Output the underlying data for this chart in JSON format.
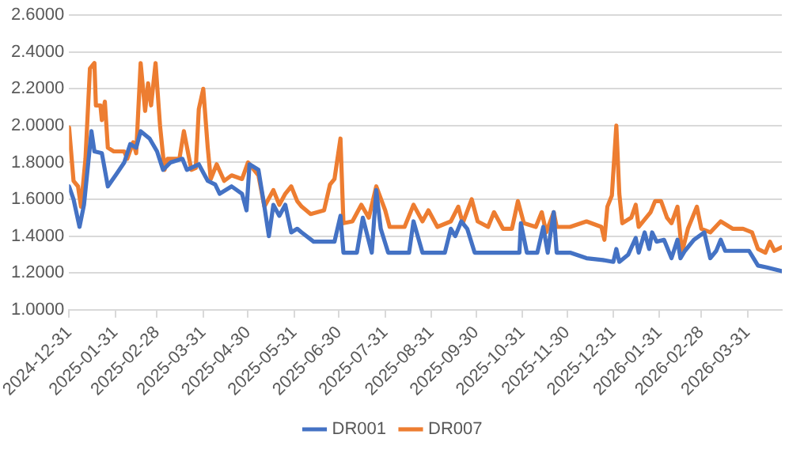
{
  "chart_data": {
    "type": "line",
    "xlim": [
      "2024-12-31",
      "2026-04-23"
    ],
    "xticks": [
      "2024-12-31",
      "2025-01-31",
      "2025-02-28",
      "2025-03-31",
      "2025-04-30",
      "2025-05-31",
      "2025-06-30",
      "2025-07-31",
      "2025-08-31",
      "2025-09-30",
      "2025-10-31",
      "2025-11-30",
      "2025-12-31",
      "2026-01-31",
      "2026-02-28",
      "2026-03-31"
    ],
    "ylim": [
      1,
      2.6
    ],
    "yticks": [
      {
        "value": 1,
        "label": "1.0000"
      },
      {
        "value": 1.2,
        "label": "1.2000"
      },
      {
        "value": 1.4,
        "label": "1.4000"
      },
      {
        "value": 1.6,
        "label": "1.6000"
      },
      {
        "value": 1.8,
        "label": "1.8000"
      },
      {
        "value": 2,
        "label": "2.0000"
      },
      {
        "value": 2.2,
        "label": "2.2000"
      },
      {
        "value": 2.4,
        "label": "2.4000"
      },
      {
        "value": 2.6,
        "label": "2.6000"
      }
    ],
    "grid": "y",
    "legend": "bottom",
    "marker": "none",
    "line_style": "solid",
    "series": [
      {
        "name": "DR001",
        "color": "#4472c4",
        "x": [
          "2024-12-31",
          "2025-01-03",
          "2025-01-07",
          "2025-01-10",
          "2025-01-15",
          "2025-01-17",
          "2025-01-22",
          "2025-01-26",
          "2025-02-01",
          "2025-02-06",
          "2025-02-10",
          "2025-02-14",
          "2025-02-17",
          "2025-02-23",
          "2025-02-28",
          "2025-03-04",
          "2025-03-09",
          "2025-03-17",
          "2025-03-20",
          "2025-03-28",
          "2025-04-03",
          "2025-04-08",
          "2025-04-11",
          "2025-04-19",
          "2025-04-26",
          "2025-04-29",
          "2025-05-01",
          "2025-05-07",
          "2025-05-11",
          "2025-05-14",
          "2025-05-17",
          "2025-05-21",
          "2025-05-25",
          "2025-05-29",
          "2025-06-02",
          "2025-06-05",
          "2025-06-13",
          "2025-06-27",
          "2025-07-01",
          "2025-07-03",
          "2025-07-12",
          "2025-07-16",
          "2025-07-22",
          "2025-07-25",
          "2025-07-28",
          "2025-08-02",
          "2025-08-16",
          "2025-08-19",
          "2025-08-25",
          "2025-09-09",
          "2025-09-13",
          "2025-09-16",
          "2025-09-20",
          "2025-09-24",
          "2025-09-29",
          "2025-10-10",
          "2025-10-16",
          "2025-10-29",
          "2025-10-30",
          "2025-11-03",
          "2025-11-10",
          "2025-11-14",
          "2025-11-17",
          "2025-11-21",
          "2025-11-23",
          "2025-12-02",
          "2025-12-13",
          "2025-12-24",
          "2025-12-31",
          "2026-01-02",
          "2026-01-04",
          "2026-01-10",
          "2026-01-15",
          "2026-01-17",
          "2026-01-21",
          "2026-01-24",
          "2026-01-26",
          "2026-01-29",
          "2026-02-03",
          "2026-02-08",
          "2026-02-12",
          "2026-02-14",
          "2026-02-17",
          "2026-02-23",
          "2026-03-02",
          "2026-03-06",
          "2026-03-10",
          "2026-03-13",
          "2026-03-16",
          "2026-04-01",
          "2026-04-07",
          "2026-04-13",
          "2026-04-23"
        ],
        "values": [
          1.67,
          1.6,
          1.45,
          1.57,
          1.97,
          1.86,
          1.85,
          1.67,
          1.74,
          1.8,
          1.9,
          1.88,
          1.97,
          1.93,
          1.86,
          1.76,
          1.8,
          1.82,
          1.76,
          1.79,
          1.7,
          1.68,
          1.63,
          1.67,
          1.63,
          1.54,
          1.79,
          1.76,
          1.56,
          1.4,
          1.57,
          1.51,
          1.57,
          1.42,
          1.44,
          1.42,
          1.37,
          1.37,
          1.51,
          1.31,
          1.31,
          1.5,
          1.31,
          1.65,
          1.44,
          1.31,
          1.31,
          1.48,
          1.31,
          1.31,
          1.44,
          1.4,
          1.48,
          1.44,
          1.31,
          1.31,
          1.31,
          1.31,
          1.47,
          1.31,
          1.31,
          1.45,
          1.31,
          1.53,
          1.31,
          1.31,
          1.28,
          1.27,
          1.26,
          1.33,
          1.26,
          1.3,
          1.39,
          1.31,
          1.42,
          1.33,
          1.42,
          1.37,
          1.38,
          1.28,
          1.38,
          1.28,
          1.32,
          1.38,
          1.42,
          1.28,
          1.32,
          1.38,
          1.32,
          1.32,
          1.24,
          1.23,
          1.21
        ]
      },
      {
        "name": "DR007",
        "color": "#ed7d31",
        "x": [
          "2024-12-31",
          "2025-01-03",
          "2025-01-06",
          "2025-01-08",
          "2025-01-11",
          "2025-01-14",
          "2025-01-17",
          "2025-01-18",
          "2025-01-21",
          "2025-01-22",
          "2025-01-24",
          "2025-01-26",
          "2025-01-30",
          "2025-02-06",
          "2025-02-08",
          "2025-02-12",
          "2025-02-14",
          "2025-02-17",
          "2025-02-20",
          "2025-02-22",
          "2025-02-24",
          "2025-02-27",
          "2025-03-02",
          "2025-03-05",
          "2025-03-07",
          "2025-03-15",
          "2025-03-18",
          "2025-03-23",
          "2025-03-26",
          "2025-03-28",
          "2025-03-31",
          "2025-04-03",
          "2025-04-05",
          "2025-04-09",
          "2025-04-14",
          "2025-04-19",
          "2025-04-26",
          "2025-04-30",
          "2025-05-07",
          "2025-05-11",
          "2025-05-17",
          "2025-05-21",
          "2025-05-25",
          "2025-05-29",
          "2025-06-02",
          "2025-06-05",
          "2025-06-11",
          "2025-06-20",
          "2025-06-24",
          "2025-06-27",
          "2025-07-01",
          "2025-07-03",
          "2025-07-09",
          "2025-07-15",
          "2025-07-20",
          "2025-07-25",
          "2025-07-31",
          "2025-08-03",
          "2025-08-13",
          "2025-08-19",
          "2025-08-25",
          "2025-08-29",
          "2025-09-04",
          "2025-09-13",
          "2025-09-18",
          "2025-09-21",
          "2025-09-27",
          "2025-10-01",
          "2025-10-08",
          "2025-10-12",
          "2025-10-18",
          "2025-10-24",
          "2025-10-28",
          "2025-11-01",
          "2025-11-09",
          "2025-11-13",
          "2025-11-16",
          "2025-11-21",
          "2025-11-23",
          "2025-12-02",
          "2025-12-13",
          "2025-12-23",
          "2025-12-25",
          "2025-12-27",
          "2025-12-30",
          "2026-01-02",
          "2026-01-04",
          "2026-01-06",
          "2026-01-12",
          "2026-01-15",
          "2026-01-17",
          "2026-01-25",
          "2026-01-28",
          "2026-02-01",
          "2026-02-05",
          "2026-02-08",
          "2026-02-12",
          "2026-02-15",
          "2026-02-19",
          "2026-02-25",
          "2026-02-28",
          "2026-03-06",
          "2026-03-13",
          "2026-03-21",
          "2026-03-28",
          "2026-04-03",
          "2026-04-07",
          "2026-04-12",
          "2026-04-15",
          "2026-04-18",
          "2026-04-23"
        ],
        "values": [
          1.99,
          1.7,
          1.67,
          1.56,
          1.82,
          2.31,
          2.34,
          2.11,
          2.11,
          2.03,
          2.13,
          1.88,
          1.86,
          1.86,
          1.82,
          1.91,
          1.85,
          2.34,
          2.08,
          2.23,
          2.11,
          2.34,
          2.0,
          1.76,
          1.82,
          1.82,
          1.97,
          1.76,
          1.77,
          2.09,
          2.2,
          1.88,
          1.71,
          1.79,
          1.7,
          1.73,
          1.71,
          1.8,
          1.73,
          1.56,
          1.65,
          1.57,
          1.63,
          1.67,
          1.59,
          1.56,
          1.52,
          1.54,
          1.68,
          1.71,
          1.93,
          1.47,
          1.48,
          1.57,
          1.5,
          1.67,
          1.54,
          1.45,
          1.45,
          1.57,
          1.48,
          1.54,
          1.45,
          1.48,
          1.56,
          1.47,
          1.6,
          1.48,
          1.45,
          1.53,
          1.44,
          1.44,
          1.59,
          1.47,
          1.45,
          1.53,
          1.42,
          1.53,
          1.45,
          1.45,
          1.48,
          1.45,
          1.38,
          1.56,
          1.62,
          2.0,
          1.63,
          1.47,
          1.5,
          1.57,
          1.45,
          1.53,
          1.59,
          1.59,
          1.5,
          1.47,
          1.56,
          1.31,
          1.44,
          1.56,
          1.44,
          1.42,
          1.48,
          1.44,
          1.44,
          1.42,
          1.33,
          1.31,
          1.37,
          1.32,
          1.34
        ]
      }
    ]
  }
}
